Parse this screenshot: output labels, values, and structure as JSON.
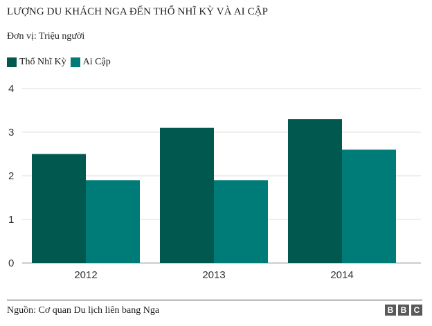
{
  "title": "LƯỢNG DU KHÁCH NGA ĐẾN THỔ NHĨ KỲ VÀ AI CẬP",
  "unit_label": "Đơn vị: Triệu người",
  "source": "Nguồn: Cơ quan Du lịch liên bang Nga",
  "logo": [
    "B",
    "B",
    "C"
  ],
  "chart_data": {
    "type": "bar",
    "categories": [
      "2012",
      "2013",
      "2014"
    ],
    "series": [
      {
        "name": "Thổ Nhĩ Kỳ",
        "color": "#00584f",
        "values": [
          2.5,
          3.1,
          3.3
        ]
      },
      {
        "name": "Ai Cập",
        "color": "#007c78",
        "values": [
          1.9,
          1.9,
          2.6
        ]
      }
    ],
    "ylim": [
      0,
      4
    ],
    "yticks": [
      0,
      1,
      2,
      3,
      4
    ],
    "grid": true,
    "legend": "top-left",
    "title": "LƯỢNG DU KHÁCH NGA ĐẾN THỔ NHĨ KỲ VÀ AI CẬP",
    "xlabel": "",
    "ylabel": ""
  }
}
